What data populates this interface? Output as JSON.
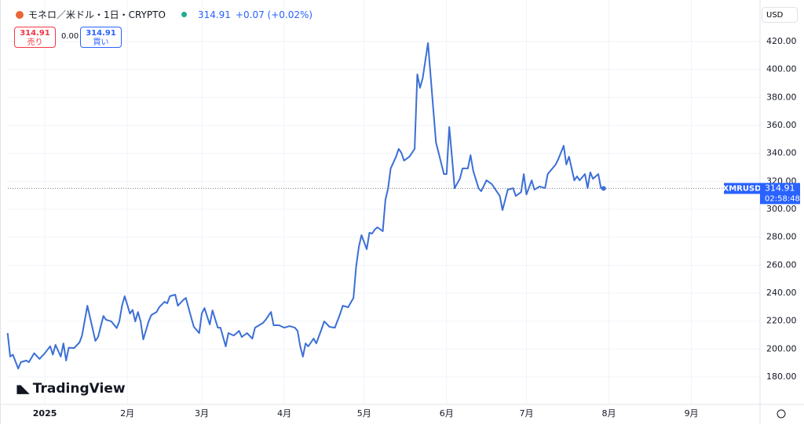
{
  "header": {
    "symbol": "モネロ／米ドル・1日・CRYPTO",
    "price": "314.91",
    "change": "+0.07 (+0.02%)"
  },
  "sell": {
    "price": "314.91",
    "label": "売り"
  },
  "spread": "0.00",
  "buy": {
    "price": "314.91",
    "label": "買い"
  },
  "currency": "USD",
  "brand": "TradingView",
  "chart_data": {
    "type": "line",
    "symbol_tag": "XMRUSD",
    "countdown": "02:58:48",
    "xlim": [
      -13.9,
      268.8
    ],
    "ylim": [
      160.4,
      449.7
    ],
    "xticks": [
      {
        "value": 0,
        "label": "2025"
      },
      {
        "value": 31,
        "label": "2月"
      },
      {
        "value": 59,
        "label": "3月"
      },
      {
        "value": 90,
        "label": "4月"
      },
      {
        "value": 120,
        "label": "5月"
      },
      {
        "value": 151,
        "label": "6月"
      },
      {
        "value": 181,
        "label": "7月"
      },
      {
        "value": 212,
        "label": "8月"
      },
      {
        "value": 243,
        "label": "9月"
      }
    ],
    "yticks": [
      {
        "value": 180,
        "label": "180.00"
      },
      {
        "value": 200,
        "label": "200.00"
      },
      {
        "value": 220,
        "label": "220.00"
      },
      {
        "value": 240,
        "label": "240.00"
      },
      {
        "value": 260,
        "label": "260.00"
      },
      {
        "value": 280,
        "label": "280.00"
      },
      {
        "value": 300,
        "label": "300.00"
      },
      {
        "value": 320,
        "label": "320.00"
      },
      {
        "value": 340,
        "label": "340.00"
      },
      {
        "value": 360,
        "label": "360.00"
      },
      {
        "value": 380,
        "label": "380.00"
      },
      {
        "value": 400,
        "label": "400.00"
      },
      {
        "value": 420,
        "label": "420.00"
      }
    ],
    "grid": true,
    "series": [
      {
        "name": "XMRUSD",
        "color": "#3b6fd6",
        "x": [
          -14,
          -13,
          -12,
          -10,
          -9,
          -7,
          -6,
          -4,
          -2,
          0,
          2,
          3,
          4,
          6,
          7,
          8,
          9,
          11,
          13,
          14,
          16,
          19,
          20,
          22,
          23,
          25,
          27,
          28,
          29,
          30,
          32,
          33,
          34,
          35,
          36,
          37,
          39,
          40,
          42,
          43,
          45,
          46,
          47,
          49,
          50,
          52,
          53,
          55,
          56,
          58,
          59,
          60,
          62,
          63,
          65,
          66,
          68,
          69,
          71,
          73,
          74,
          76,
          78,
          79,
          82,
          83,
          85,
          86,
          88,
          90,
          92,
          94,
          95,
          96,
          97,
          98,
          99,
          101,
          102,
          104,
          105,
          107,
          109,
          111,
          112,
          114,
          116,
          117,
          118,
          119,
          121,
          122,
          123,
          124,
          125,
          127,
          128,
          129,
          130,
          132,
          133,
          134,
          135,
          137,
          139,
          140,
          141,
          142,
          144,
          146,
          147,
          148,
          150,
          151,
          152,
          153,
          154,
          156,
          157,
          159,
          160,
          161,
          163,
          164,
          166,
          168,
          170,
          171,
          172,
          174,
          176,
          177,
          179,
          180,
          181,
          183,
          184,
          186,
          188,
          189,
          190,
          192,
          193,
          195,
          196,
          197,
          199,
          200,
          201,
          203,
          204,
          205,
          206,
          208,
          209,
          210
        ],
        "values": [
          211.4,
          194.6,
          196,
          186,
          190.6,
          191.8,
          190.6,
          197,
          193,
          197,
          202,
          196,
          203,
          194.6,
          204,
          191.8,
          201,
          200.7,
          204.7,
          209.7,
          231,
          205.8,
          208.6,
          223.7,
          221,
          219.8,
          215,
          219.8,
          231,
          237.8,
          225.4,
          228,
          219.8,
          226.5,
          219.8,
          206.9,
          219.8,
          224.3,
          226.5,
          230,
          233.8,
          232.7,
          237.8,
          238.9,
          231,
          235,
          236.6,
          222.6,
          215.9,
          211.4,
          225.4,
          229.3,
          217.6,
          227.7,
          215.3,
          215.3,
          201.9,
          211.4,
          209.7,
          213,
          208.6,
          211.4,
          207.5,
          215.3,
          218.7,
          221,
          226.5,
          217,
          217,
          215.3,
          216.4,
          215.3,
          213,
          201.9,
          194.6,
          204,
          201.9,
          207.5,
          204,
          214.2,
          219.8,
          215.9,
          215.3,
          225.4,
          231,
          229.9,
          236.6,
          259,
          273,
          281.5,
          271.4,
          283.2,
          282.6,
          285.4,
          287.1,
          284.3,
          306.7,
          315.1,
          329.2,
          337.6,
          343.2,
          340.4,
          334.8,
          337.6,
          343.2,
          396.5,
          386.9,
          393.6,
          418.9,
          371.2,
          347.7,
          340.4,
          325.2,
          325.2,
          358.9,
          337.6,
          315.1,
          321.8,
          329.2,
          329.2,
          338.7,
          327.5,
          315.1,
          312.9,
          320.7,
          318,
          312.3,
          309.5,
          299.4,
          314,
          315.1,
          309.5,
          312.3,
          325.2,
          310.6,
          320.7,
          314,
          316.3,
          315.1,
          325.2,
          327.5,
          332,
          335.9,
          345.4,
          332,
          337.6,
          320.7,
          323.5,
          320.7,
          325.2,
          315.1,
          326.4,
          321.8,
          325.2,
          315.1,
          314.91
        ]
      }
    ]
  }
}
